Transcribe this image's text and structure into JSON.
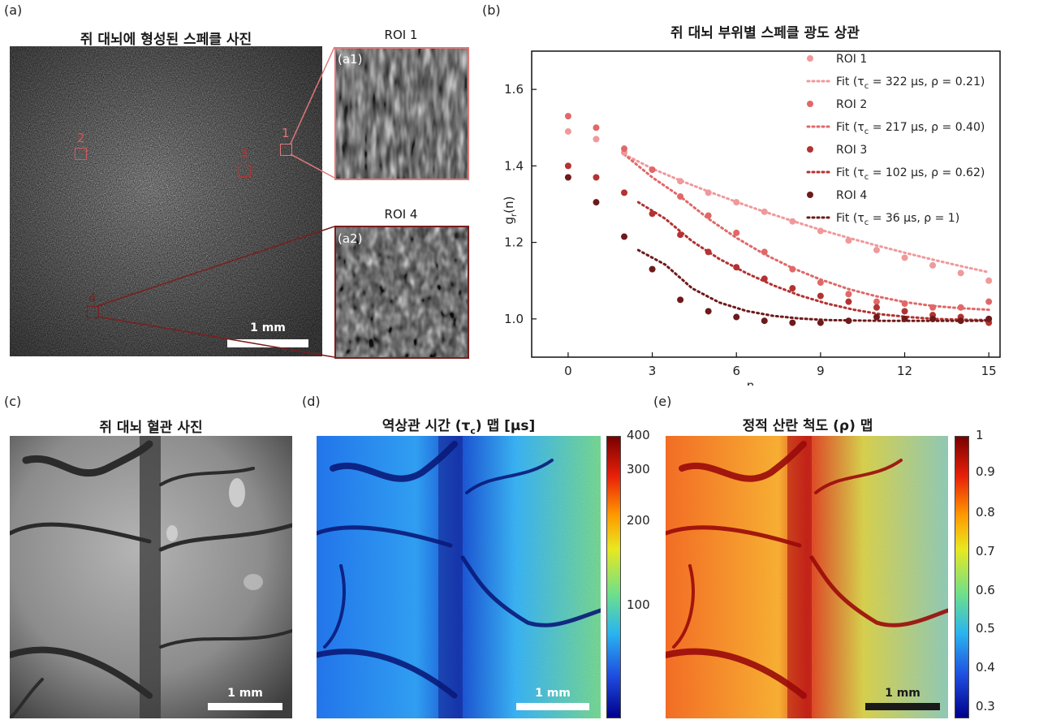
{
  "panels": {
    "a": {
      "label": "(a)",
      "title": "쥐 대뇌에 형성된 스페클 사진",
      "roi_markers": [
        "1",
        "2",
        "3",
        "4"
      ],
      "roi1_title": "ROI 1",
      "roi4_title": "ROI 4",
      "inset1_label": "(a1)",
      "inset2_label": "(a2)",
      "scalebar": "1 mm"
    },
    "b": {
      "label": "(b)",
      "title": "쥐 대뇌 부위별 스페클 광도 상관",
      "xlabel": "n",
      "ylabel_main": "g",
      "ylabel_sub": "r",
      "ylabel_tail": "(n)"
    },
    "c": {
      "label": "(c)",
      "title": "쥐 대뇌 혈관 사진",
      "scalebar": "1 mm"
    },
    "d": {
      "label": "(d)",
      "title_pre": "역상관 시간 (τ",
      "title_sub": "c",
      "title_post": ") 맵 [μs]",
      "scalebar": "1 mm",
      "colorbar_ticks": [
        "400",
        "300",
        "200",
        "100"
      ]
    },
    "e": {
      "label": "(e)",
      "title": "정적 산란 척도 (ρ) 맵",
      "scalebar": "1 mm",
      "colorbar_ticks": [
        "1",
        "0.9",
        "0.8",
        "0.7",
        "0.6",
        "0.5",
        "0.4",
        "0.3"
      ]
    }
  },
  "colors": {
    "roi1": "#f0999b",
    "roi2": "#e06868",
    "roi3": "#b33232",
    "roi4": "#6e1a1a",
    "roi1_frame": "#e07878",
    "roi4_frame": "#7a1e1e"
  },
  "chart_data": {
    "type": "scatter",
    "xlabel": "n",
    "ylabel": "g_r(n)",
    "xlim": [
      -1.3,
      15.4
    ],
    "ylim": [
      0.9,
      1.7
    ],
    "xticks": [
      0,
      3,
      6,
      9,
      12,
      15
    ],
    "yticks": [
      1.0,
      1.2,
      1.4,
      1.6
    ],
    "xtick_labels": [
      "0",
      "3",
      "6",
      "9",
      "12",
      "15"
    ],
    "ytick_labels": [
      "1.0",
      "1.2",
      "1.4",
      "1.6"
    ],
    "legend_position": "top-right",
    "x": [
      0,
      1,
      2,
      3,
      4,
      5,
      6,
      7,
      8,
      9,
      10,
      11,
      12,
      13,
      14,
      15
    ],
    "series": [
      {
        "name": "ROI 1",
        "color": "#f0999b",
        "values": [
          1.49,
          1.47,
          1.435,
          1.39,
          1.36,
          1.33,
          1.305,
          1.28,
          1.255,
          1.23,
          1.205,
          1.18,
          1.16,
          1.14,
          1.12,
          1.1
        ],
        "fit": {
          "label_pre": "Fit (τ",
          "label_sub": "c",
          "label_post": " = 322 μs, ρ = 0.21)",
          "x_start": 2,
          "values": [
            1.43,
            1.393,
            1.362,
            1.333,
            1.306,
            1.28,
            1.256,
            1.233,
            1.212,
            1.192,
            1.173,
            1.155,
            1.138,
            1.122
          ]
        }
      },
      {
        "name": "ROI 2",
        "color": "#e06868",
        "values": [
          1.53,
          1.5,
          1.445,
          1.39,
          1.32,
          1.27,
          1.225,
          1.175,
          1.13,
          1.095,
          1.065,
          1.045,
          1.04,
          1.03,
          1.03,
          1.045
        ],
        "fit": {
          "label_pre": "Fit (τ",
          "label_sub": "c",
          "label_post": " = 217 μs, ρ = 0.40)",
          "x_start": 2,
          "values": [
            1.43,
            1.37,
            1.32,
            1.262,
            1.212,
            1.169,
            1.133,
            1.103,
            1.078,
            1.059,
            1.044,
            1.034,
            1.028,
            1.024
          ]
        }
      },
      {
        "name": "ROI 3",
        "color": "#b33232",
        "values": [
          1.4,
          1.37,
          1.33,
          1.275,
          1.22,
          1.175,
          1.135,
          1.105,
          1.08,
          1.06,
          1.045,
          1.03,
          1.02,
          1.01,
          1.005,
          0.99
        ],
        "fit": {
          "label_pre": "Fit (τ",
          "label_sub": "c",
          "label_post": " = 102 μs, ρ = 0.62)",
          "x_start": 2.5,
          "values": [
            1.305,
            1.262,
            1.203,
            1.157,
            1.12,
            1.088,
            1.061,
            1.04,
            1.024,
            1.012,
            1.005,
            1.0,
            0.998,
            0.997
          ]
        }
      },
      {
        "name": "ROI 4",
        "color": "#6e1a1a",
        "values": [
          1.37,
          1.305,
          1.215,
          1.13,
          1.05,
          1.02,
          1.005,
          0.995,
          0.99,
          0.99,
          0.995,
          1.005,
          1.0,
          1.0,
          0.995,
          1.0
        ],
        "fit": {
          "label_pre": "Fit (τ",
          "label_sub": "c",
          "label_post": " = 36 μs, ρ = 1)",
          "x_start": 2.5,
          "values": [
            1.18,
            1.142,
            1.08,
            1.043,
            1.021,
            1.008,
            1.001,
            0.997,
            0.996,
            0.995,
            0.995,
            0.995,
            0.995,
            0.995
          ]
        }
      }
    ]
  }
}
